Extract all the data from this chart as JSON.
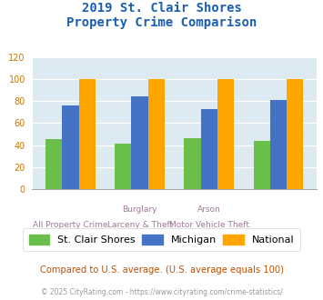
{
  "title_line1": "2019 St. Clair Shores",
  "title_line2": "Property Crime Comparison",
  "stclair": [
    45,
    41,
    46,
    44
  ],
  "michigan": [
    76,
    84,
    73,
    81
  ],
  "national": [
    100,
    100,
    100,
    100
  ],
  "color_stclair": "#6abf4b",
  "color_michigan": "#4472c4",
  "color_national": "#ffa500",
  "ylim": [
    0,
    120
  ],
  "yticks": [
    0,
    20,
    40,
    60,
    80,
    100,
    120
  ],
  "legend_labels": [
    "St. Clair Shores",
    "Michigan",
    "National"
  ],
  "top_labels": [
    "",
    "Burglary",
    "Arson",
    ""
  ],
  "bot_labels": [
    "All Property Crime",
    "Larceny & Theft",
    "Motor Vehicle Theft",
    ""
  ],
  "footnote1": "Compared to U.S. average. (U.S. average equals 100)",
  "footnote2": "© 2025 CityRating.com - https://www.cityrating.com/crime-statistics/",
  "bg_color": "#ddeaf2",
  "title_color": "#1a5fb4",
  "xlabel_color": "#a07898",
  "footnote1_color": "#c05000",
  "footnote2_color": "#999999"
}
